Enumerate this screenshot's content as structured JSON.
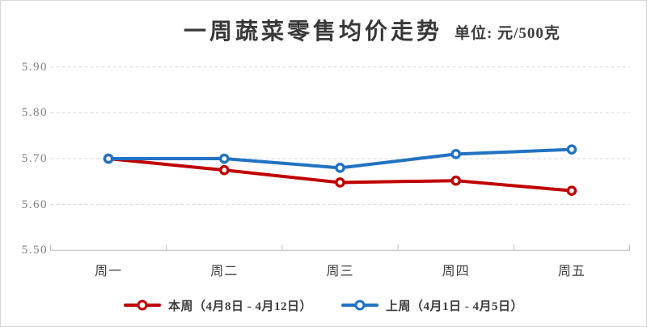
{
  "header": {
    "title": "一周蔬菜零售均价走势",
    "unit": "单位: 元/500克"
  },
  "chart_data": {
    "type": "line",
    "title": "一周蔬菜零售均价走势",
    "unit": "元/500克",
    "categories": [
      "周一",
      "周二",
      "周三",
      "周四",
      "周五"
    ],
    "series": [
      {
        "name": "本周（4月8日 - 4月12日）",
        "color": "#C00000",
        "marker": "open-circle",
        "values": [
          5.7,
          5.675,
          5.648,
          5.652,
          5.63
        ]
      },
      {
        "name": "上周（4月1日 - 4月5日）",
        "color": "#2272C2",
        "marker": "open-circle",
        "values": [
          5.7,
          5.7,
          5.68,
          5.71,
          5.72
        ]
      }
    ],
    "xlabel": "",
    "ylabel": "",
    "ylim": [
      5.5,
      5.9
    ],
    "yticks": [
      5.5,
      5.6,
      5.7,
      5.8,
      5.9
    ],
    "ytick_labels": [
      "5.50",
      "5.60",
      "5.70",
      "5.80",
      "5.90"
    ],
    "grid": "horizontal-dashed",
    "legend_position": "bottom"
  },
  "colors": {
    "grid": "#D9D9D9",
    "axis": "#BFBFBF",
    "title_text": "#383838",
    "ytick_text": "#7F7F7F",
    "xtick_text": "#404040",
    "legend_text": "#3D3D3D",
    "background": "#FFFFFF"
  }
}
